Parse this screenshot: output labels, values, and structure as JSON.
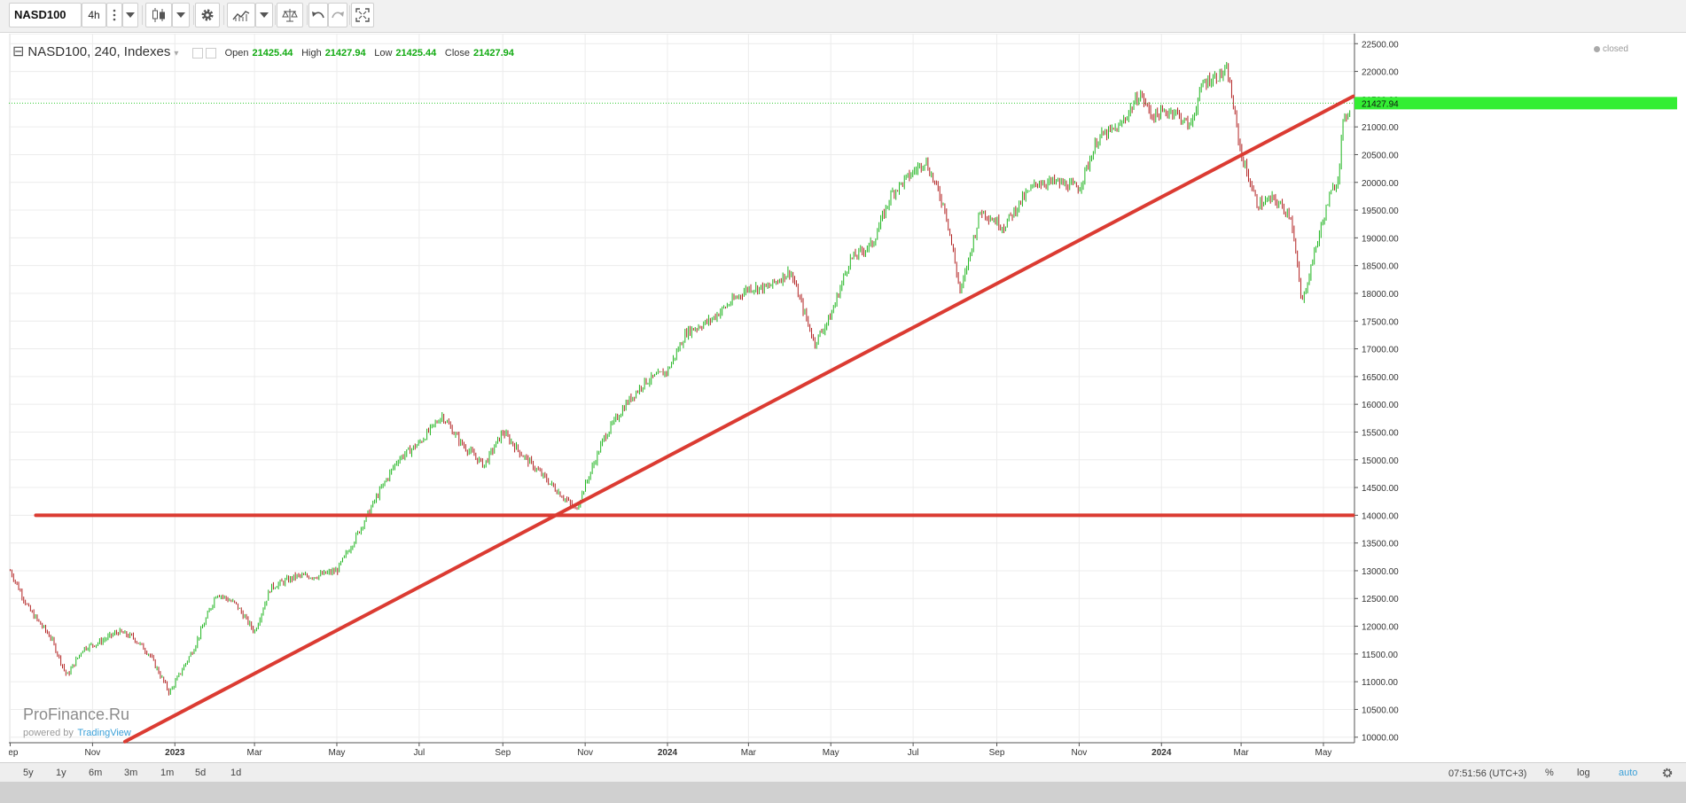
{
  "toolbar": {
    "symbol": "NASD100",
    "interval": "4h",
    "icons": [
      "candles-icon",
      "settings-icon",
      "indicators-icon",
      "compare-icon",
      "undo-icon",
      "redo-icon",
      "fullscreen-icon"
    ]
  },
  "legend": {
    "title": "NASD100, 240, Indexes",
    "open_label": "Open",
    "open": "21425.44",
    "high_label": "High",
    "high": "21427.94",
    "low_label": "Low",
    "low": "21425.44",
    "close_label": "Close",
    "close": "21427.94"
  },
  "status": "closed",
  "watermark": {
    "name": "ProFinance.Ru",
    "powered": "powered by",
    "tv": "TradingView"
  },
  "bottom": {
    "ranges": [
      "5y",
      "1y",
      "6m",
      "3m",
      "1m",
      "5d",
      "1d"
    ],
    "clock": "07:51:56 (UTC+3)",
    "percent": "%",
    "log": "log",
    "auto": "auto"
  },
  "colors": {
    "up": "#1fb51f",
    "down": "#b22222",
    "drawing": "#db3b32",
    "price_tag": "#33ee33"
  },
  "chart_data": {
    "type": "candlestick",
    "price_axis": {
      "ticks": [
        "22500.00",
        "22000.00",
        "21500.00",
        "21000.00",
        "20500.00",
        "20000.00",
        "19500.00",
        "19000.00",
        "18500.00",
        "18000.00",
        "17500.00",
        "17000.00",
        "16500.00",
        "16000.00",
        "15500.00",
        "15000.00",
        "14500.00",
        "14000.00",
        "13500.00",
        "13000.00",
        "12500.00",
        "12000.00",
        "11500.00",
        "11000.00",
        "10500.00",
        "10000.00"
      ],
      "range": [
        9900,
        22680
      ]
    },
    "time_axis": {
      "labels": [
        "Sep",
        "Nov",
        "2023",
        "Mar",
        "May",
        "Jul",
        "Sep",
        "Nov",
        "2024",
        "Mar",
        "May",
        "Jul",
        "Sep",
        "Nov",
        "2024",
        "Mar",
        "May"
      ],
      "bold": [
        "2023",
        "2024"
      ]
    },
    "current_price": "21427.94",
    "series": {
      "dates": [
        "2022-09-01",
        "2022-09-15",
        "2022-10-01",
        "2022-10-13",
        "2022-10-25",
        "2022-11-05",
        "2022-11-20",
        "2022-12-01",
        "2022-12-13",
        "2022-12-28",
        "2023-01-15",
        "2023-02-01",
        "2023-02-15",
        "2023-03-01",
        "2023-03-13",
        "2023-04-01",
        "2023-04-15",
        "2023-05-01",
        "2023-05-15",
        "2023-06-01",
        "2023-06-15",
        "2023-07-01",
        "2023-07-18",
        "2023-08-01",
        "2023-08-18",
        "2023-09-01",
        "2023-09-15",
        "2023-10-01",
        "2023-10-25",
        "2023-11-15",
        "2023-12-01",
        "2023-12-15",
        "2024-01-01",
        "2024-01-15",
        "2024-02-01",
        "2024-02-15",
        "2024-03-01",
        "2024-03-15",
        "2024-04-01",
        "2024-04-19",
        "2024-05-01",
        "2024-05-15",
        "2024-06-01",
        "2024-06-15",
        "2024-07-10",
        "2024-07-25",
        "2024-08-05",
        "2024-08-20",
        "2024-09-06",
        "2024-09-20",
        "2024-10-01",
        "2024-10-15",
        "2024-11-01",
        "2024-11-15",
        "2024-12-01",
        "2024-12-16",
        "2024-12-25",
        "2025-01-10",
        "2025-01-22",
        "2025-02-01",
        "2025-02-19",
        "2025-03-01",
        "2025-03-13",
        "2025-03-25",
        "2025-04-07",
        "2025-04-15",
        "2025-04-25",
        "2025-05-05",
        "2025-05-12",
        "2025-05-15",
        "2025-05-21"
      ],
      "close": [
        13000,
        12300,
        11800,
        11100,
        11600,
        11700,
        11900,
        11800,
        11500,
        10800,
        11600,
        12600,
        12400,
        11900,
        12700,
        12900,
        12900,
        13000,
        13600,
        14400,
        15000,
        15300,
        15800,
        15300,
        14900,
        15500,
        15100,
        14700,
        14100,
        15400,
        16000,
        16400,
        16600,
        17300,
        17500,
        17800,
        18100,
        18100,
        18400,
        17100,
        17600,
        18600,
        18900,
        19800,
        20400,
        19500,
        18000,
        19500,
        19200,
        19700,
        20000,
        20000,
        19900,
        20800,
        21000,
        21600,
        21200,
        21300,
        21000,
        21800,
        22000,
        20500,
        19600,
        19700,
        19400,
        17800,
        18800,
        19700,
        20100,
        21000,
        21400
      ]
    },
    "drawings": [
      {
        "type": "horizontal_line",
        "price": 14000,
        "from": "2022-09-20",
        "to": "2025-05-23"
      },
      {
        "type": "trend_line",
        "from": {
          "date": "2022-11-25",
          "price": 9920
        },
        "to": {
          "date": "2025-05-23",
          "price": 21550
        }
      }
    ]
  }
}
